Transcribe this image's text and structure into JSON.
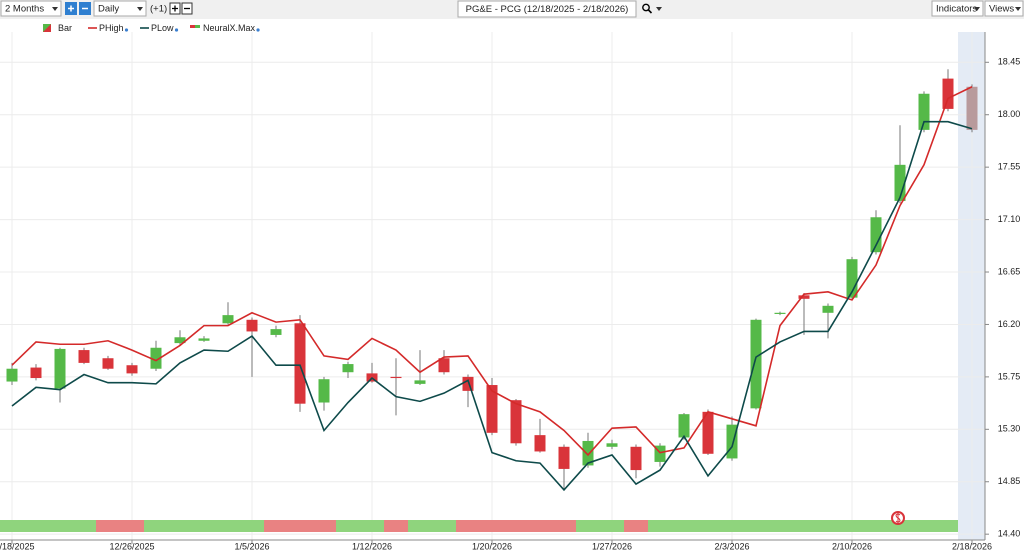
{
  "toolbar": {
    "range": "2 Months",
    "interval": "Daily",
    "offset": "(+1)",
    "symbol": "PG&E - PCG (12/18/2025 - 2/18/2026)",
    "indicators": "Indicators",
    "views": "Views"
  },
  "chart_data": {
    "type": "candlestick",
    "categories": [
      "12/18/2025",
      null,
      null,
      null,
      null,
      "12/26/2025",
      null,
      null,
      null,
      null,
      "1/5/2026",
      null,
      null,
      null,
      null,
      "1/12/2026",
      null,
      null,
      null,
      null,
      "1/20/2026",
      null,
      null,
      null,
      null,
      "1/27/2026",
      null,
      null,
      null,
      null,
      "2/3/2026",
      null,
      null,
      null,
      null,
      "2/10/2026",
      null,
      null,
      null,
      null,
      "2/18/2026"
    ],
    "candles": {
      "name": "Bar",
      "up_color": "#55b948",
      "down_color": "#d9343a",
      "last_color": "#b89a9c",
      "open": [
        15.71,
        15.83,
        15.65,
        15.98,
        15.91,
        15.85,
        15.82,
        16.04,
        16.06,
        16.21,
        16.24,
        16.11,
        16.21,
        15.53,
        15.79,
        15.78,
        15.75,
        15.69,
        15.91,
        15.75,
        15.68,
        15.55,
        15.25,
        15.15,
        14.99,
        15.15,
        15.15,
        15.02,
        15.23,
        15.45,
        15.05,
        15.48,
        16.29,
        16.45,
        16.3,
        16.43,
        16.82,
        17.26,
        17.87,
        18.31,
        18.24
      ],
      "high": [
        15.87,
        15.86,
        16.0,
        16.0,
        15.93,
        15.87,
        16.06,
        16.15,
        16.1,
        16.39,
        16.26,
        16.19,
        16.28,
        15.75,
        15.88,
        15.87,
        15.91,
        15.98,
        15.98,
        15.77,
        15.74,
        15.56,
        15.39,
        15.17,
        15.27,
        15.21,
        15.17,
        15.18,
        15.44,
        15.47,
        15.41,
        16.25,
        16.31,
        16.47,
        16.38,
        16.78,
        17.18,
        17.91,
        18.2,
        18.39,
        18.26
      ],
      "low": [
        15.68,
        15.72,
        15.53,
        15.86,
        15.81,
        15.76,
        15.8,
        16.02,
        16.05,
        16.2,
        15.75,
        16.09,
        15.45,
        15.46,
        15.74,
        15.7,
        15.42,
        15.68,
        15.77,
        15.49,
        15.25,
        15.16,
        15.1,
        14.78,
        14.97,
        15.13,
        14.88,
        14.98,
        15.21,
        15.08,
        15.03,
        15.47,
        16.28,
        16.11,
        16.08,
        16.41,
        16.8,
        17.24,
        17.85,
        18.03,
        17.85
      ],
      "close": [
        15.82,
        15.74,
        15.99,
        15.87,
        15.82,
        15.78,
        16.0,
        16.09,
        16.08,
        16.28,
        16.14,
        16.16,
        15.52,
        15.73,
        15.86,
        15.71,
        15.74,
        15.72,
        15.79,
        15.63,
        15.27,
        15.18,
        15.11,
        14.96,
        15.2,
        15.18,
        14.95,
        15.16,
        15.43,
        15.09,
        15.34,
        16.24,
        16.3,
        16.42,
        16.36,
        16.76,
        17.12,
        17.57,
        18.18,
        18.05,
        17.87
      ]
    },
    "series": [
      {
        "name": "PHigh",
        "color": "#d42a2a",
        "values": [
          15.85,
          16.05,
          16.03,
          16.03,
          16.06,
          15.98,
          15.89,
          16.02,
          16.19,
          16.19,
          16.3,
          16.22,
          16.24,
          15.93,
          15.9,
          16.08,
          15.98,
          15.79,
          15.92,
          15.93,
          15.63,
          15.52,
          15.45,
          15.29,
          15.08,
          15.31,
          15.32,
          15.1,
          15.14,
          15.45,
          15.39,
          15.33,
          16.19,
          16.46,
          16.48,
          16.41,
          16.71,
          17.22,
          17.57,
          18.14,
          18.24
        ]
      },
      {
        "name": "PLow",
        "color": "#0e4a4a",
        "values": [
          15.5,
          15.66,
          15.64,
          15.77,
          15.7,
          15.7,
          15.69,
          15.87,
          15.98,
          15.97,
          16.1,
          15.85,
          15.85,
          15.29,
          15.53,
          15.74,
          15.58,
          15.54,
          15.61,
          15.72,
          15.1,
          15.03,
          15.01,
          14.78,
          15.01,
          15.08,
          14.83,
          14.95,
          15.24,
          14.9,
          15.15,
          15.92,
          16.05,
          16.14,
          16.14,
          16.48,
          16.88,
          17.29,
          17.94,
          17.94,
          17.88
        ]
      }
    ],
    "signal": {
      "name": "NeuralX.Max",
      "colors": [
        "#8fd47d",
        "#8fd47d",
        "#8fd47d",
        "#8fd47d",
        "#e98282",
        "#e98282",
        "#8fd47d",
        "#8fd47d",
        "#8fd47d",
        "#8fd47d",
        "#8fd47d",
        "#e98282",
        "#e98282",
        "#e98282",
        "#8fd47d",
        "#8fd47d",
        "#e98282",
        "#8fd47d",
        "#8fd47d",
        "#e98282",
        "#e98282",
        "#e98282",
        "#e98282",
        "#e98282",
        "#8fd47d",
        "#8fd47d",
        "#e98282",
        "#8fd47d",
        "#8fd47d",
        "#8fd47d",
        "#8fd47d",
        "#8fd47d",
        "#8fd47d",
        "#8fd47d",
        "#8fd47d",
        "#8fd47d",
        "#8fd47d",
        "#8fd47d",
        "#8fd47d",
        "#8fd47d",
        null
      ]
    },
    "ylim": [
      14.35,
      18.71
    ],
    "yticks": [
      18.45,
      {
        "value": 18,
        "label": "18.00"
      },
      17.55,
      {
        "value": 17.1,
        "label": "17.10"
      },
      16.65,
      {
        "value": 16.2,
        "label": "16.20"
      },
      15.75,
      {
        "value": 15.3,
        "label": "15.30"
      },
      14.85,
      {
        "value": 14.4,
        "label": "14.40"
      }
    ],
    "grid": true
  }
}
